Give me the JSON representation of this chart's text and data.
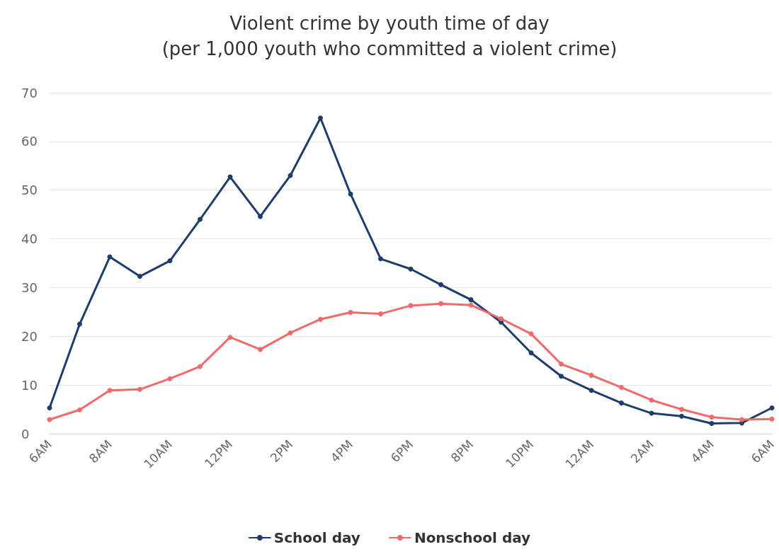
{
  "chart_data": {
    "type": "line",
    "title": "Violent crime by youth time of day\n(per 1,000 youth who committed a violent crime)",
    "categories": [
      "6AM",
      null,
      "8AM",
      null,
      "10AM",
      null,
      "12PM",
      null,
      "2PM",
      null,
      "4PM",
      null,
      "6PM",
      null,
      "8PM",
      null,
      "10PM",
      null,
      "12AM",
      null,
      "2AM",
      null,
      "4AM",
      null,
      "6AM"
    ],
    "series": [
      {
        "name": "School day",
        "color": "#1f3d6b",
        "values": [
          5.3,
          22.5,
          36.3,
          32.3,
          35.5,
          44,
          52.7,
          44.6,
          53,
          64.8,
          49.2,
          35.9,
          33.8,
          30.6,
          27.5,
          22.9,
          16.6,
          11.8,
          8.9,
          6.3,
          4.2,
          3.6,
          2.1,
          2.2,
          5.3
        ]
      },
      {
        "name": "Nonschool day",
        "color": "#f06a6a",
        "values": [
          2.9,
          4.9,
          8.9,
          9.1,
          11.3,
          13.8,
          19.8,
          17.3,
          20.7,
          23.5,
          24.9,
          24.6,
          26.3,
          26.7,
          26.4,
          23.6,
          20.5,
          14.3,
          12.0,
          9.5,
          6.9,
          5.0,
          3.4,
          2.9,
          3.0
        ]
      }
    ],
    "ylim": [
      0,
      70
    ],
    "yticks": [
      0,
      10,
      20,
      30,
      40,
      50,
      60,
      70
    ],
    "grid": "y",
    "legend": "bottom",
    "marker": "circle",
    "line_style": "solid"
  }
}
